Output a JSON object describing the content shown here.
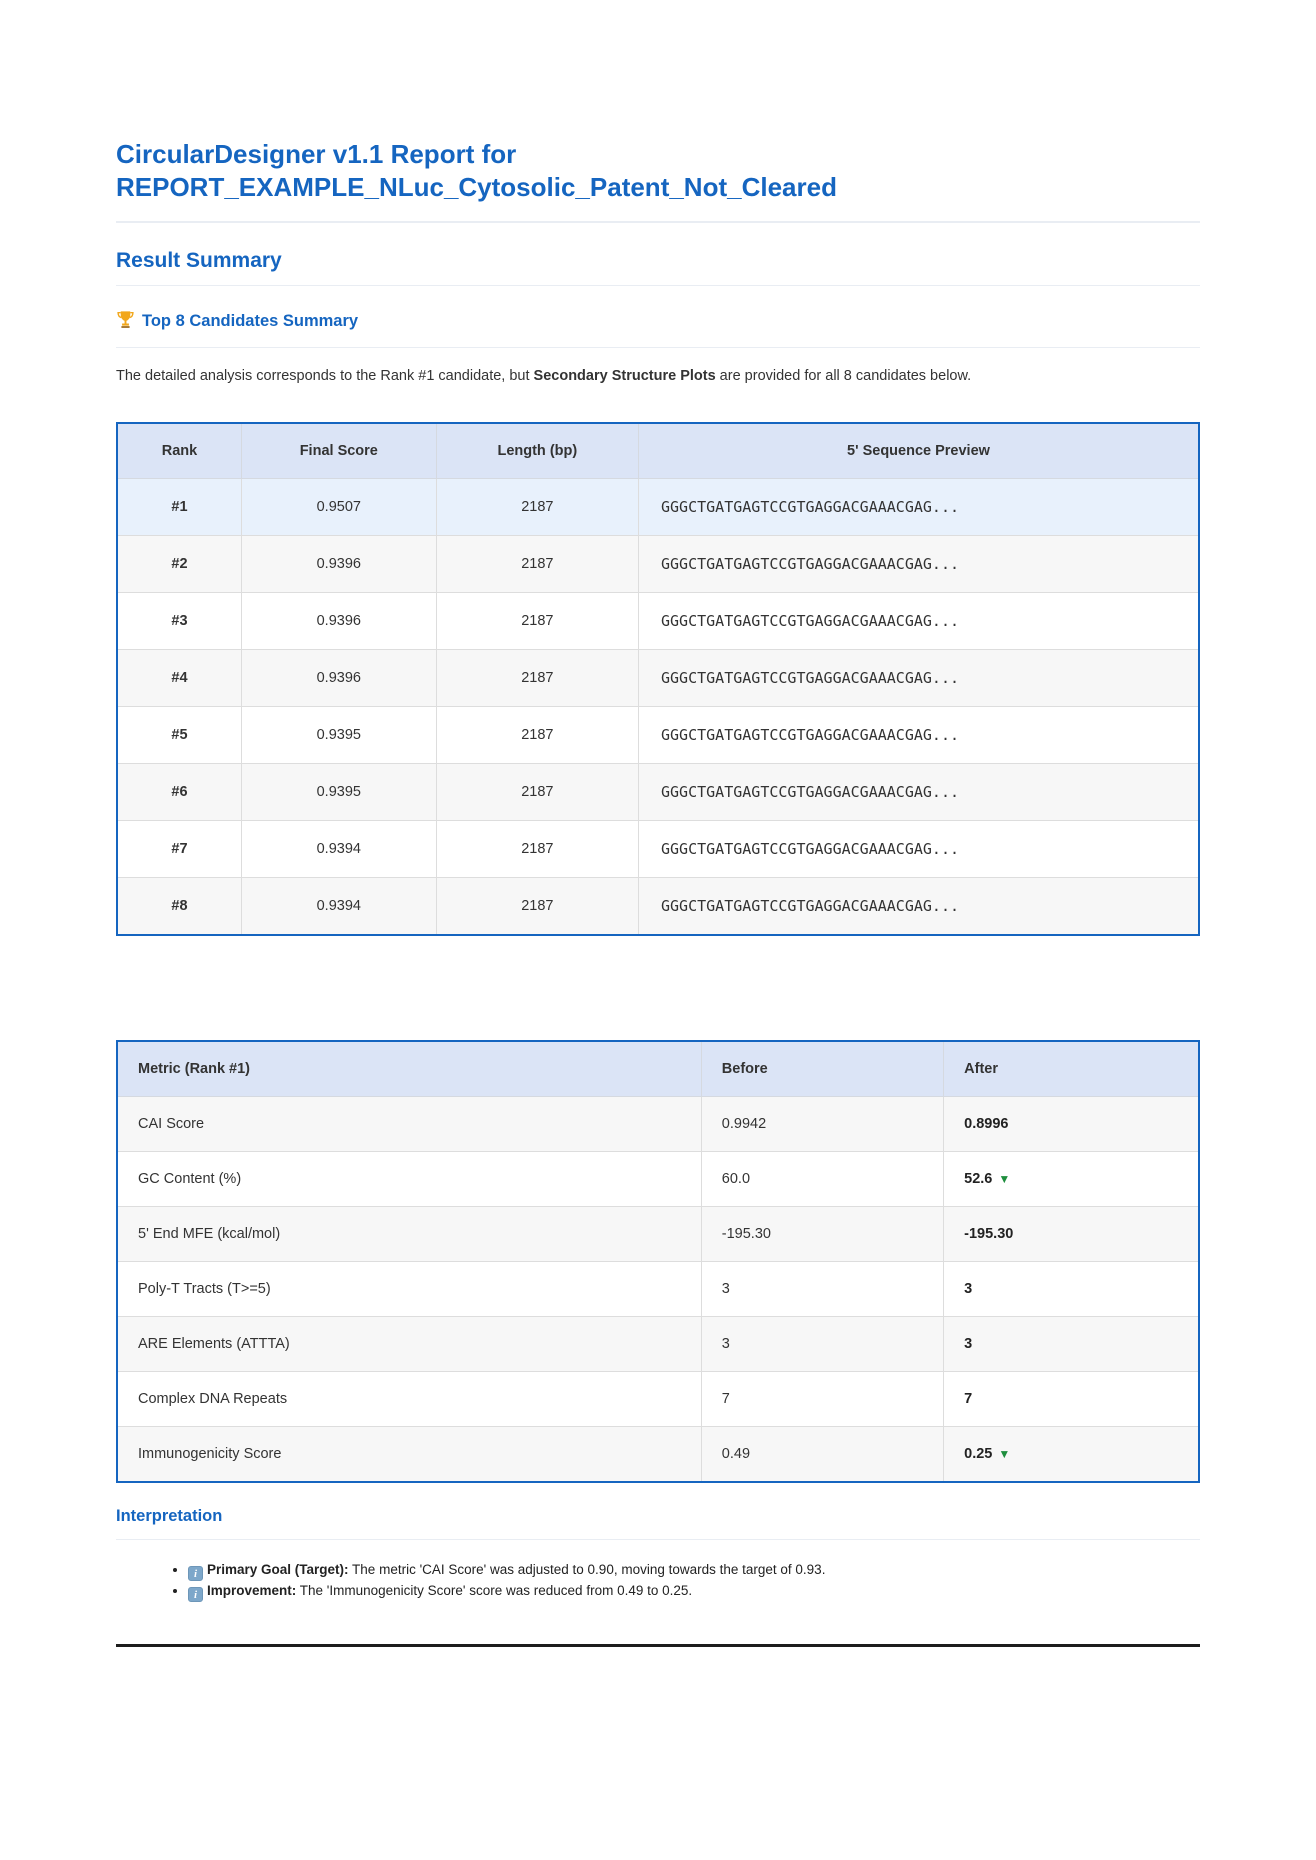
{
  "report": {
    "title_line1": "CircularDesigner v1.1 Report for",
    "title_line2": "REPORT_EXAMPLE_NLuc_Cytosolic_Patent_Not_Cleared",
    "result_summary_heading": "Result Summary",
    "top8_heading": "Top 8 Candidates Summary"
  },
  "intro": {
    "part1": "The detailed analysis corresponds to the Rank #1 candidate, but ",
    "bold": "Secondary Structure Plots",
    "part2": " are provided for all 8 candidates below."
  },
  "candidates_table": {
    "headers": [
      "Rank",
      "Final Score",
      "Length (bp)",
      "5' Sequence Preview"
    ],
    "rows": [
      {
        "rank": "#1",
        "score": "0.9507",
        "length": "2187",
        "seq": "GGGCTGATGAGTCCGTGAGGACGAAACGAG..."
      },
      {
        "rank": "#2",
        "score": "0.9396",
        "length": "2187",
        "seq": "GGGCTGATGAGTCCGTGAGGACGAAACGAG..."
      },
      {
        "rank": "#3",
        "score": "0.9396",
        "length": "2187",
        "seq": "GGGCTGATGAGTCCGTGAGGACGAAACGAG..."
      },
      {
        "rank": "#4",
        "score": "0.9396",
        "length": "2187",
        "seq": "GGGCTGATGAGTCCGTGAGGACGAAACGAG..."
      },
      {
        "rank": "#5",
        "score": "0.9395",
        "length": "2187",
        "seq": "GGGCTGATGAGTCCGTGAGGACGAAACGAG..."
      },
      {
        "rank": "#6",
        "score": "0.9395",
        "length": "2187",
        "seq": "GGGCTGATGAGTCCGTGAGGACGAAACGAG..."
      },
      {
        "rank": "#7",
        "score": "0.9394",
        "length": "2187",
        "seq": "GGGCTGATGAGTCCGTGAGGACGAAACGAG..."
      },
      {
        "rank": "#8",
        "score": "0.9394",
        "length": "2187",
        "seq": "GGGCTGATGAGTCCGTGAGGACGAAACGAG..."
      }
    ]
  },
  "metrics_table": {
    "headers": [
      "Metric (Rank #1)",
      "Before",
      "After"
    ],
    "rows": [
      {
        "metric": "CAI Score",
        "before": "0.9942",
        "after": "0.8996",
        "arrow": ""
      },
      {
        "metric": "GC Content (%)",
        "before": "60.0",
        "after": "52.6",
        "arrow": "▼"
      },
      {
        "metric": "5' End MFE (kcal/mol)",
        "before": "-195.30",
        "after": "-195.30",
        "arrow": ""
      },
      {
        "metric": "Poly-T Tracts (T>=5)",
        "before": "3",
        "after": "3",
        "arrow": ""
      },
      {
        "metric": "ARE Elements (ATTTA)",
        "before": "3",
        "after": "3",
        "arrow": ""
      },
      {
        "metric": "Complex DNA Repeats",
        "before": "7",
        "after": "7",
        "arrow": ""
      },
      {
        "metric": "Immunogenicity Score",
        "before": "0.49",
        "after": "0.25",
        "arrow": "▼"
      }
    ]
  },
  "interpretation": {
    "heading": "Interpretation",
    "bullets": [
      {
        "label": "Primary Goal (Target):",
        "text": " The metric 'CAI Score' was adjusted to 0.90, moving towards the target of 0.93."
      },
      {
        "label": "Improvement:",
        "text": " The 'Immunogenicity Score' score was reduced from 0.49 to 0.25."
      }
    ]
  },
  "icons": {
    "trophy": "trophy-icon",
    "info": "info-icon",
    "decrease_arrow": "decrease-arrow-icon"
  },
  "colors": {
    "heading_blue": "#1565c0",
    "table_border_blue": "#1565c0",
    "header_row_bg": "#dbe4f6",
    "rank1_highlight_bg": "#e8f1fc",
    "stripe_bg": "#f7f7f7",
    "decrease_green": "#1e8e3e",
    "final_rule": "#1c1c1c"
  }
}
